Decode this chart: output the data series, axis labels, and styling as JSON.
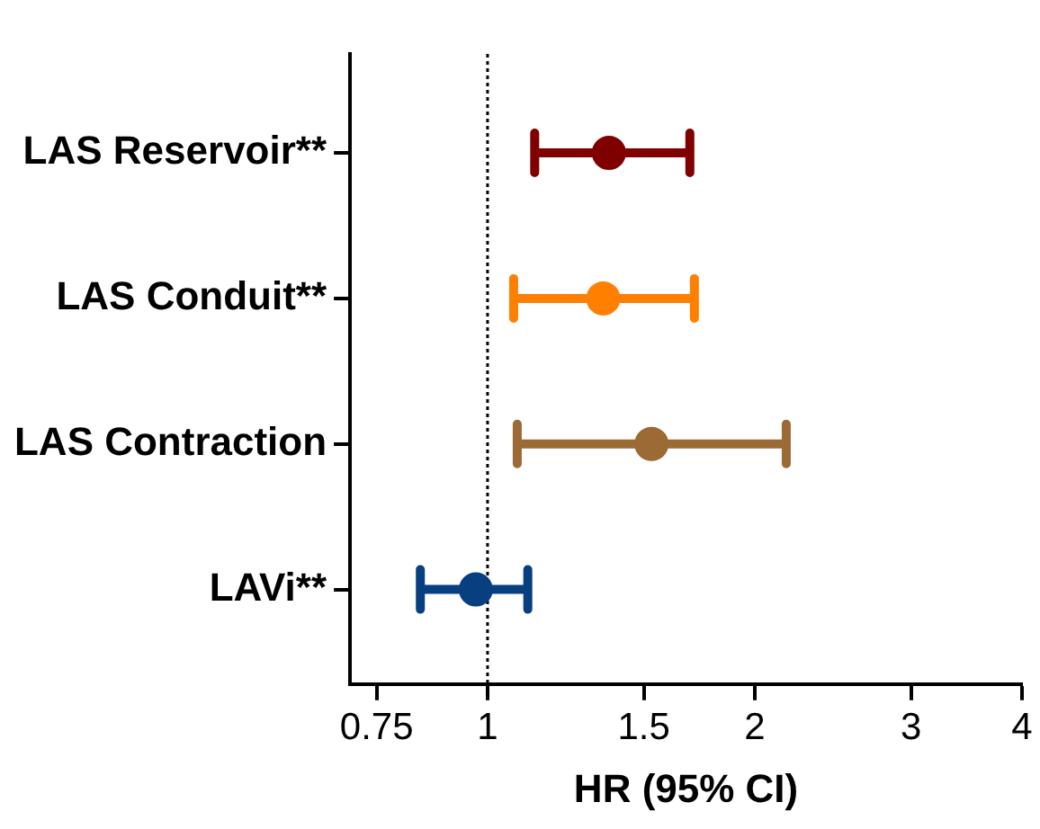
{
  "chart_data": {
    "type": "scatter",
    "orientation": "horizontal",
    "xlabel": "HR (95% CI)",
    "categories": [
      "LAS Reservoir**",
      "LAS Conduit**",
      "LAS Contraction",
      "LAVi**"
    ],
    "values": [
      1.37,
      1.35,
      1.53,
      0.97
    ],
    "errors": [
      [
        1.13,
        1.69
      ],
      [
        1.07,
        1.71
      ],
      [
        1.08,
        2.17
      ],
      [
        0.84,
        1.11
      ]
    ],
    "colors": [
      "#800000",
      "#ff8000",
      "#9c6a34",
      "#073f80"
    ],
    "xlim": [
      0.7,
      4
    ],
    "xticks": [
      0.75,
      1,
      1.5,
      2,
      3,
      4
    ],
    "log": "x",
    "ref_lines": [
      {
        "axis": "x",
        "value": 1,
        "line_style": "dotted",
        "color": "#000000"
      }
    ],
    "marker": "circle",
    "grid": false,
    "legend": false
  }
}
